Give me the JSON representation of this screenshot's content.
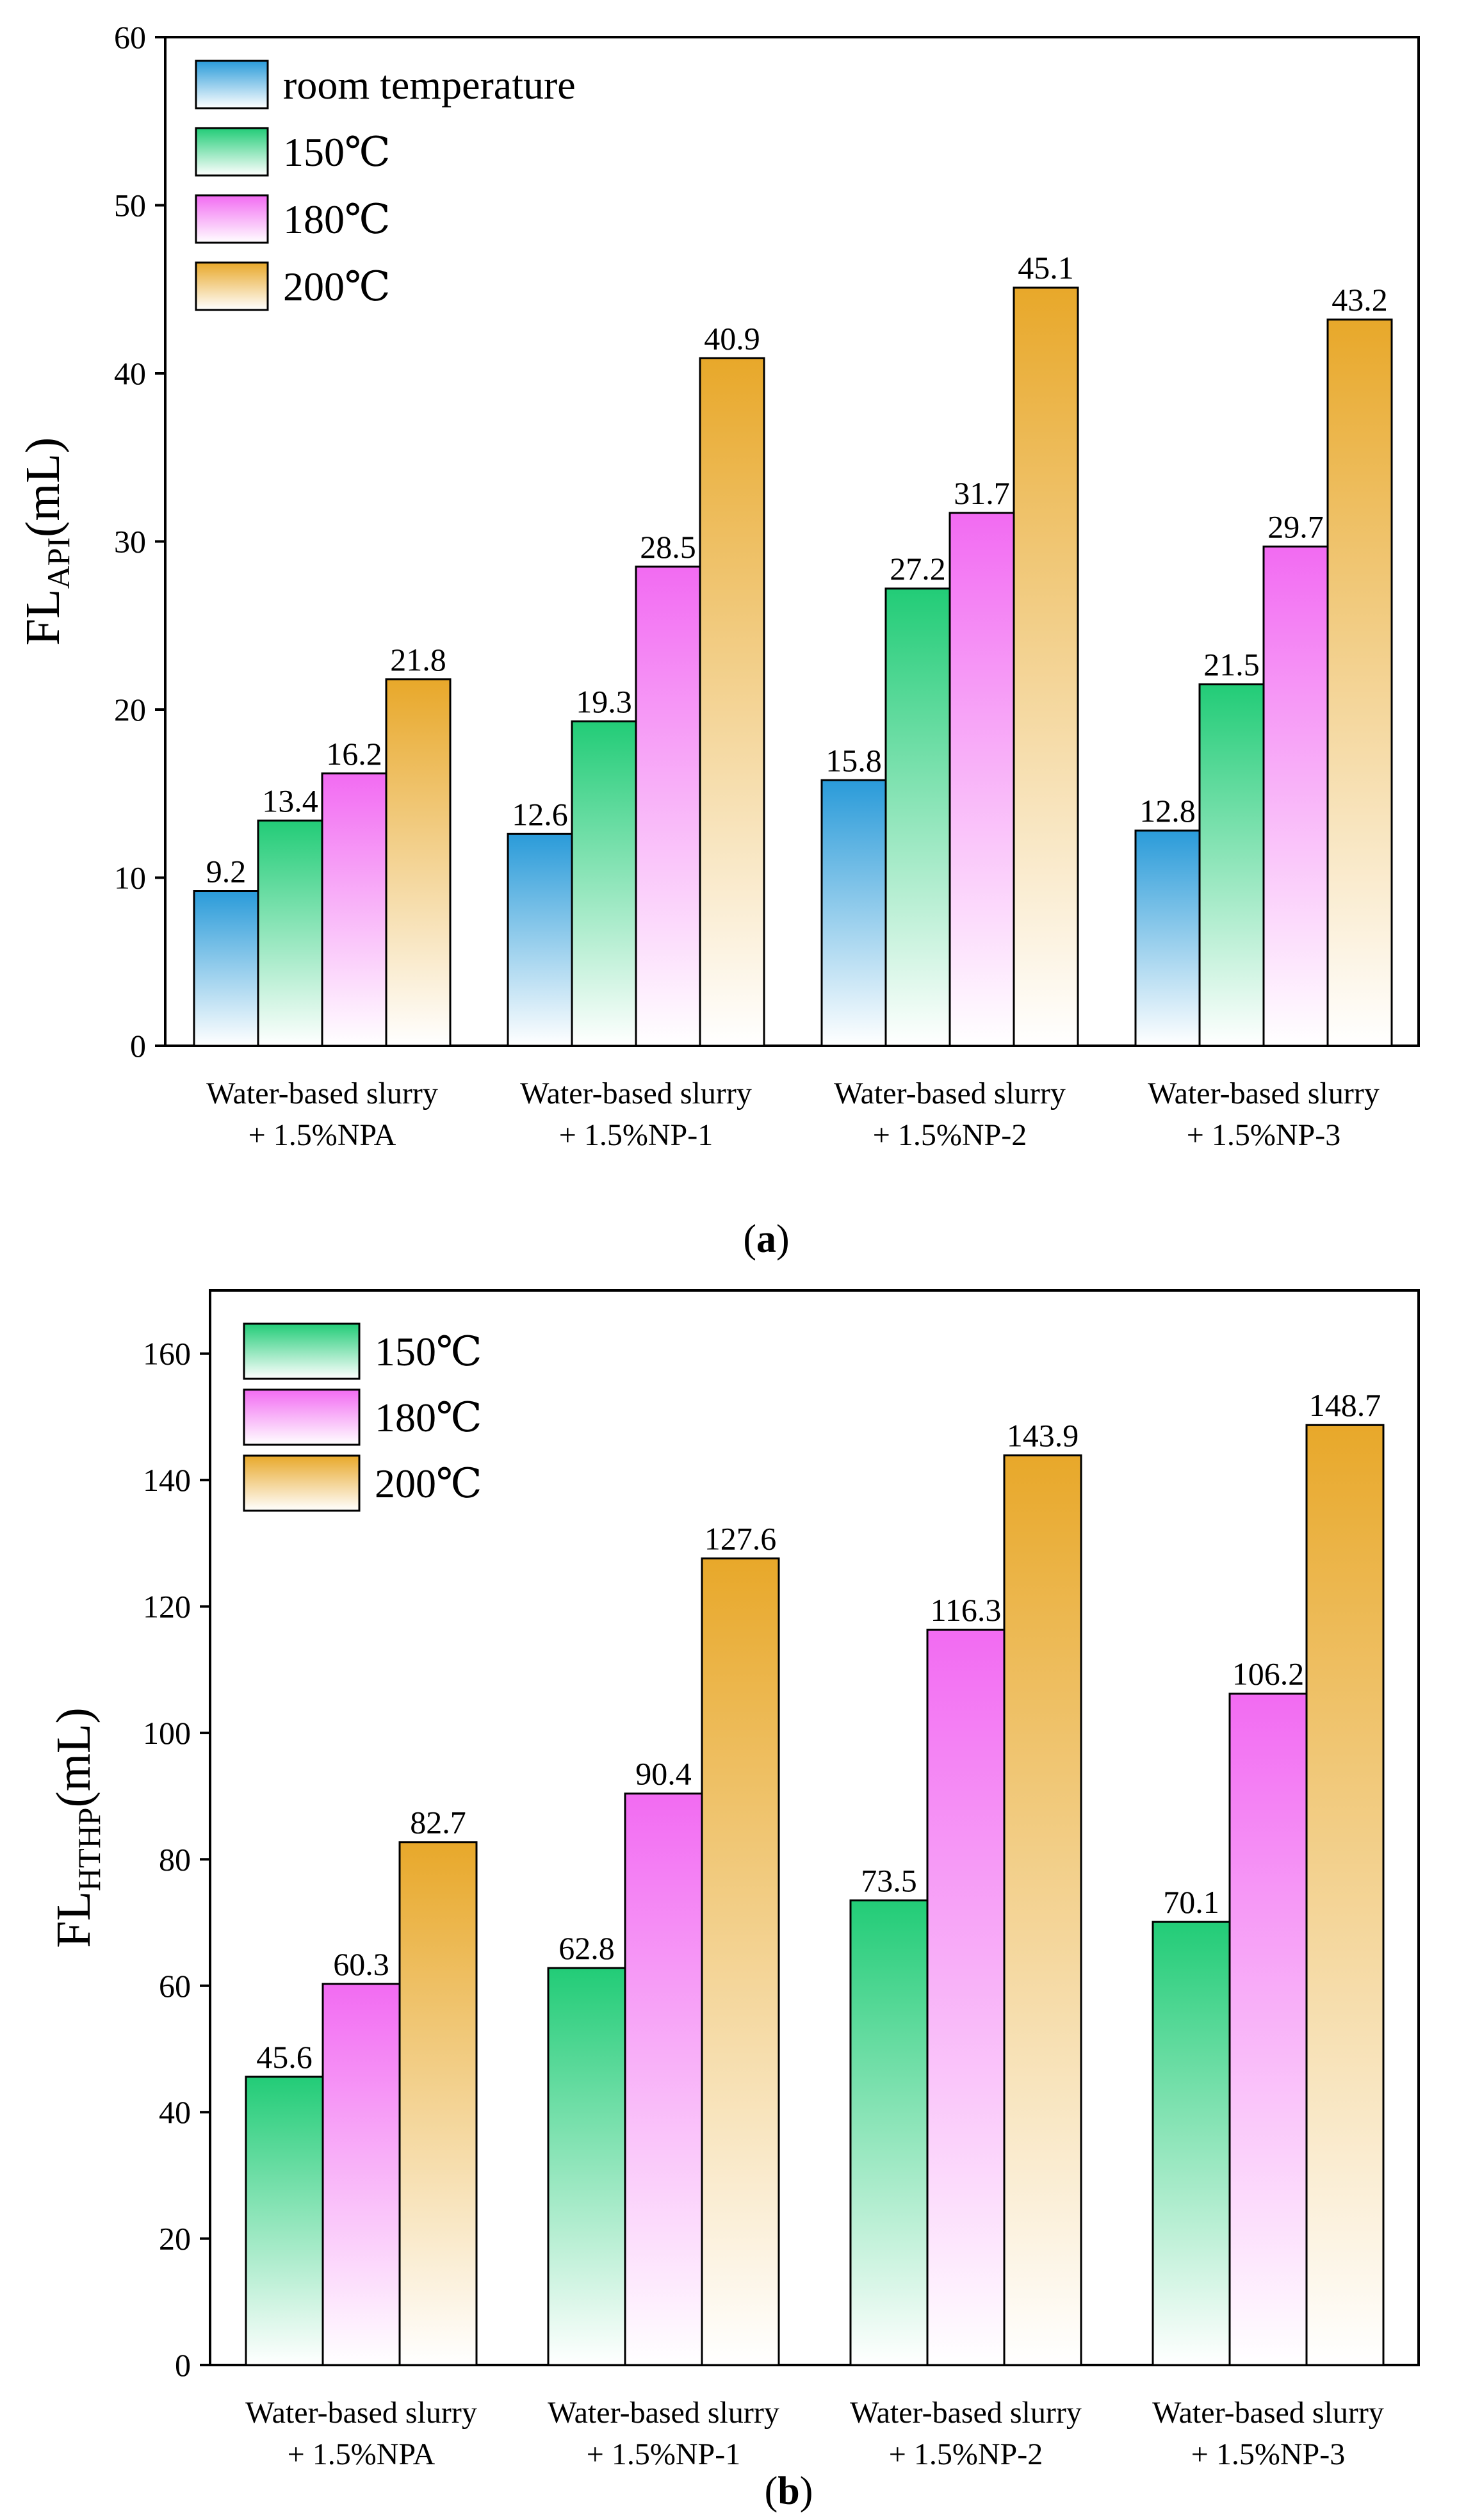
{
  "chart_data": [
    {
      "type": "bar",
      "panel": "(a)",
      "panel_letter": "a",
      "ylabel_main": "FL",
      "ylabel_sub": "API",
      "ylabel_unit": "(mL)",
      "ylim": [
        0,
        60
      ],
      "yticks": [
        0,
        10,
        20,
        30,
        40,
        50,
        60
      ],
      "categories": [
        [
          "Water-based slurry",
          "+ 1.5%NPA"
        ],
        [
          "Water-based slurry",
          "+ 1.5%NP-1"
        ],
        [
          "Water-based slurry",
          "+ 1.5%NP-2"
        ],
        [
          "Water-based slurry",
          "+ 1.5%NP-3"
        ]
      ],
      "legend_position": "top-left",
      "series": [
        {
          "name": "room temperature",
          "color": "#2a9bd9",
          "values": [
            9.2,
            12.6,
            15.8,
            12.8
          ]
        },
        {
          "name": "150℃",
          "color": "#22cc77",
          "values": [
            13.4,
            19.3,
            27.2,
            21.5
          ]
        },
        {
          "name": "180℃",
          "color": "#f26bf2",
          "values": [
            16.2,
            28.5,
            31.7,
            29.7
          ]
        },
        {
          "name": "200℃",
          "color": "#e8a82a",
          "values": [
            21.8,
            40.9,
            45.1,
            43.2
          ]
        }
      ]
    },
    {
      "type": "bar",
      "panel": "(b)",
      "panel_letter": "b",
      "ylabel_main": "FL",
      "ylabel_sub": "HTHP",
      "ylabel_unit": "(mL)",
      "ylim": [
        0,
        170
      ],
      "yticks": [
        0,
        20,
        40,
        60,
        80,
        100,
        120,
        140,
        160
      ],
      "categories": [
        [
          "Water-based slurry",
          "+ 1.5%NPA"
        ],
        [
          "Water-based slurry",
          "+ 1.5%NP-1"
        ],
        [
          "Water-based slurry",
          "+ 1.5%NP-2"
        ],
        [
          "Water-based slurry",
          "+ 1.5%NP-3"
        ]
      ],
      "legend_position": "top-left",
      "series": [
        {
          "name": "150℃",
          "color": "#22cc77",
          "values": [
            45.6,
            62.8,
            73.5,
            70.1
          ]
        },
        {
          "name": "180℃",
          "color": "#f26bf2",
          "values": [
            60.3,
            90.4,
            116.3,
            106.2
          ]
        },
        {
          "name": "200℃",
          "color": "#e8a82a",
          "values": [
            82.7,
            127.6,
            143.9,
            148.7
          ]
        }
      ]
    }
  ]
}
